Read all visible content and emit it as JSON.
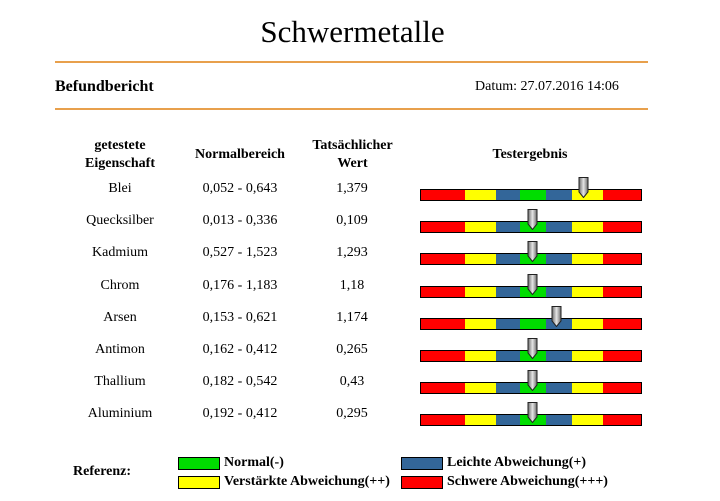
{
  "header": {
    "title": "Schwermetalle",
    "report_label": "Befundbericht",
    "date": "Datum: 27.07.2016 14:06"
  },
  "table": {
    "columns": [
      "getestete Eigenschaft",
      "Normalbereich",
      "Tatsächlicher Wert",
      "Testergebnis"
    ],
    "rows": [
      {
        "name": "Blei",
        "range": "0,052 - 0,643",
        "value": "1,379",
        "level": 0.74
      },
      {
        "name": "Quecksilber",
        "range": "0,013 - 0,336",
        "value": "0,109",
        "level": 0.51
      },
      {
        "name": "Kadmium",
        "range": "0,527 - 1,523",
        "value": "1,293",
        "level": 0.51
      },
      {
        "name": "Chrom",
        "range": "0,176 - 1,183",
        "value": "1,18",
        "level": 0.51
      },
      {
        "name": "Arsen",
        "range": "0,153 - 0,621",
        "value": "1,174",
        "level": 0.62
      },
      {
        "name": "Antimon",
        "range": "0,162 - 0,412",
        "value": "0,265",
        "level": 0.51
      },
      {
        "name": "Thallium",
        "range": "0,182 - 0,542",
        "value": "0,43",
        "level": 0.51
      },
      {
        "name": "Aluminium",
        "range": "0,192 - 0,412",
        "value": "0,295",
        "level": 0.51
      }
    ]
  },
  "scale_colors": [
    "#ff0000",
    "#ffff00",
    "#336699",
    "#00dd00",
    "#336699",
    "#ffff00",
    "#ff0000"
  ],
  "legend": {
    "label": "Referenz:",
    "items": [
      {
        "text": "Normal(-)",
        "color": "#00dd00"
      },
      {
        "text": "Leichte Abweichung(+)",
        "color": "#336699"
      },
      {
        "text": "Verstärkte Abweichung(++)",
        "color": "#ffff00"
      },
      {
        "text": "Schwere Abweichung(+++)",
        "color": "#ff0000"
      }
    ]
  }
}
